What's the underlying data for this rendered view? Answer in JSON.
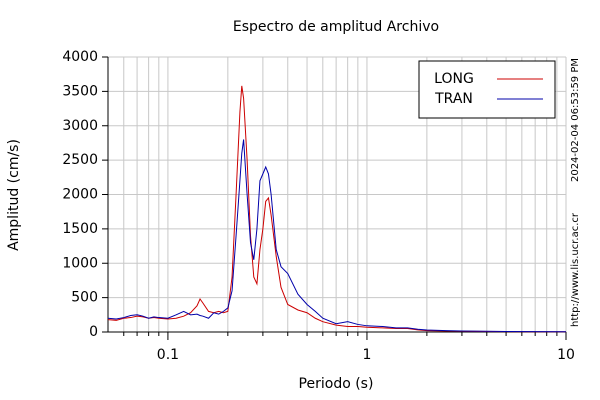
{
  "chart_data": {
    "type": "line",
    "title": "Espectro de amplitud Archivo",
    "xlabel": "Periodo (s)",
    "ylabel": "Amplitud (cm/s)",
    "side_texts": [
      "2024-02-04 06:53:59 PM",
      "http://www.lis.ucr.ac.cr"
    ],
    "xscale": "log",
    "xlim": [
      0.05,
      10
    ],
    "xticks": [
      0.1,
      1,
      10
    ],
    "x_minor_ticks": [
      0.06,
      0.07,
      0.08,
      0.09,
      0.2,
      0.3,
      0.4,
      0.5,
      0.6,
      0.7,
      0.8,
      0.9,
      2,
      3,
      4,
      5,
      6,
      7,
      8,
      9
    ],
    "ylim": [
      0,
      4000
    ],
    "yticks": [
      0,
      500,
      1000,
      1500,
      2000,
      2500,
      3000,
      3500,
      4000
    ],
    "grid": true,
    "legend": "upper right",
    "x": [
      0.05,
      0.055,
      0.06,
      0.065,
      0.07,
      0.075,
      0.08,
      0.085,
      0.09,
      0.1,
      0.11,
      0.12,
      0.13,
      0.14,
      0.145,
      0.15,
      0.16,
      0.17,
      0.18,
      0.19,
      0.2,
      0.21,
      0.22,
      0.23,
      0.235,
      0.24,
      0.25,
      0.26,
      0.27,
      0.28,
      0.29,
      0.3,
      0.31,
      0.32,
      0.33,
      0.35,
      0.37,
      0.4,
      0.45,
      0.5,
      0.55,
      0.6,
      0.7,
      0.8,
      0.9,
      1,
      1.2,
      1.4,
      1.6,
      1.8,
      2,
      2.5,
      3,
      4,
      5,
      7,
      10
    ],
    "series": [
      {
        "name": "LONG",
        "color": "#cc0000",
        "values": [
          180,
          170,
          200,
          210,
          230,
          220,
          200,
          210,
          200,
          190,
          200,
          230,
          280,
          380,
          480,
          420,
          300,
          280,
          300,
          280,
          300,
          800,
          2000,
          3200,
          3580,
          3400,
          2500,
          1400,
          800,
          700,
          1200,
          1500,
          1900,
          1950,
          1700,
          1100,
          650,
          400,
          320,
          280,
          200,
          150,
          100,
          80,
          80,
          70,
          60,
          50,
          50,
          30,
          20,
          15,
          10,
          8,
          5,
          4,
          3
        ]
      },
      {
        "name": "TRAN",
        "color": "#0000aa",
        "values": [
          200,
          190,
          210,
          240,
          250,
          230,
          200,
          220,
          210,
          200,
          250,
          300,
          250,
          260,
          240,
          230,
          200,
          280,
          260,
          300,
          350,
          600,
          1400,
          2200,
          2600,
          2800,
          2000,
          1300,
          1050,
          1500,
          2200,
          2300,
          2400,
          2300,
          2000,
          1200,
          950,
          850,
          550,
          400,
          300,
          200,
          120,
          150,
          110,
          90,
          80,
          60,
          60,
          40,
          30,
          20,
          15,
          10,
          8,
          5,
          4
        ]
      }
    ]
  }
}
